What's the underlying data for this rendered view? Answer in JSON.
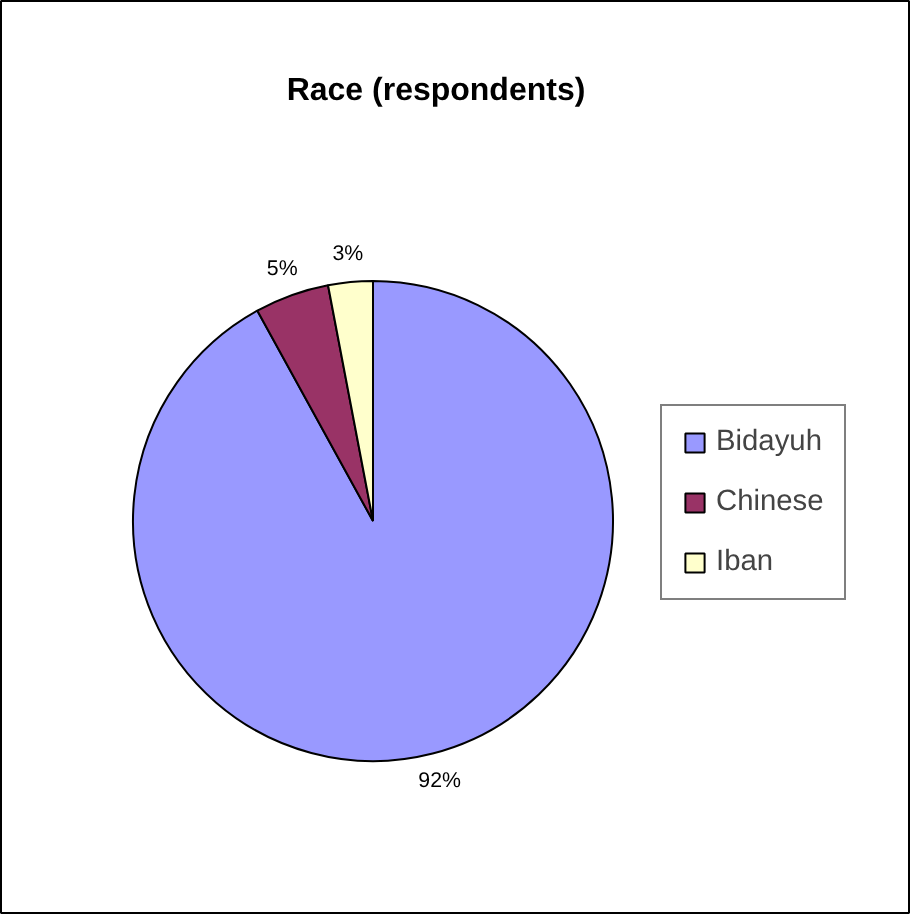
{
  "chart_data": {
    "type": "pie",
    "title": "Race (respondents)",
    "categories": [
      "Bidayuh",
      "Chinese",
      "Iban"
    ],
    "values": [
      92,
      5,
      3
    ],
    "colors": [
      "#9999ff",
      "#993366",
      "#ffffcc"
    ],
    "value_labels": [
      "92%",
      "5%",
      "3%"
    ],
    "legend": "right"
  }
}
